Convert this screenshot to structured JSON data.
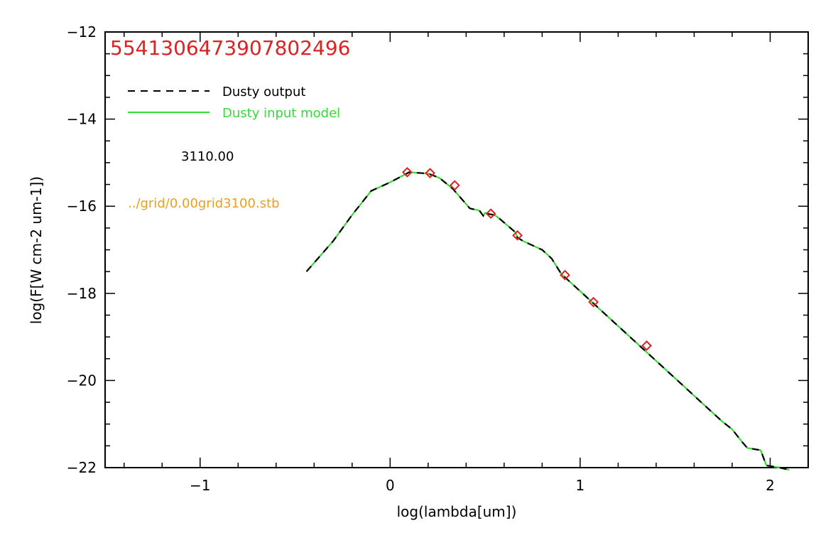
{
  "colors": {
    "frame": "#000000",
    "dusty_output": "#000000",
    "dusty_input": "#33dd33",
    "markers": "#dd2222",
    "identifier": "#dd2222",
    "file_label": "#e8a020",
    "temperature_label": "#000000"
  },
  "chart_data": {
    "type": "line",
    "title": "",
    "identifier": "5541306473907802496",
    "xlabel": "log(lambda[um])",
    "ylabel": "log(F[W cm-2 um-1])",
    "xlim": [
      -1.5,
      2.2
    ],
    "ylim": [
      -22,
      -12
    ],
    "x_ticks": [
      -1,
      0,
      1,
      2
    ],
    "x_tick_labels": [
      "−1",
      "0",
      "1",
      "2"
    ],
    "y_ticks": [
      -22,
      -20,
      -18,
      -16,
      -14,
      -12
    ],
    "y_tick_labels": [
      "−22",
      "−20",
      "−18",
      "−16",
      "−14",
      "−12"
    ],
    "annotations": {
      "temperature": "3110.00",
      "file": "../grid/0.00grid3100.stb"
    },
    "legend": {
      "placement": "top-left",
      "entries": [
        "Dusty output",
        "Dusty input model"
      ]
    },
    "series": [
      {
        "name": "Dusty output",
        "style": "dashed",
        "x": [
          -0.44,
          -0.3,
          -0.2,
          -0.1,
          0.0,
          0.1,
          0.2,
          0.26,
          0.33,
          0.42,
          0.47,
          0.49,
          0.5,
          0.52,
          0.55,
          0.58,
          0.62,
          0.66,
          0.67,
          0.7,
          0.75,
          0.8,
          0.85,
          0.9,
          0.95,
          1.0,
          1.1,
          1.2,
          1.3,
          1.4,
          1.5,
          1.6,
          1.7,
          1.75,
          1.8,
          1.85,
          1.88,
          1.95,
          1.98,
          2.05,
          2.1
        ],
        "y": [
          -17.5,
          -16.8,
          -16.2,
          -15.65,
          -15.45,
          -15.22,
          -15.25,
          -15.35,
          -15.6,
          -16.05,
          -16.1,
          -16.22,
          -16.15,
          -16.18,
          -16.2,
          -16.3,
          -16.45,
          -16.6,
          -16.72,
          -16.8,
          -16.9,
          -17.0,
          -17.2,
          -17.55,
          -17.75,
          -17.95,
          -18.35,
          -18.75,
          -19.15,
          -19.55,
          -19.95,
          -20.35,
          -20.75,
          -20.95,
          -21.12,
          -21.4,
          -21.55,
          -21.6,
          -21.95,
          -22.0,
          -22.05
        ]
      },
      {
        "name": "Dusty input model",
        "style": "solid",
        "x": [
          -0.44,
          -0.3,
          -0.2,
          -0.1,
          0.0,
          0.1,
          0.2,
          0.26,
          0.33,
          0.42,
          0.47,
          0.49,
          0.5,
          0.52,
          0.55,
          0.58,
          0.62,
          0.66,
          0.67,
          0.7,
          0.75,
          0.8,
          0.85,
          0.9,
          0.95,
          1.0,
          1.1,
          1.2,
          1.3,
          1.4,
          1.5,
          1.6,
          1.7,
          1.75,
          1.8,
          1.85,
          1.88,
          1.95,
          1.98,
          2.05,
          2.1
        ],
        "y": [
          -17.5,
          -16.8,
          -16.2,
          -15.65,
          -15.45,
          -15.22,
          -15.25,
          -15.35,
          -15.6,
          -16.05,
          -16.1,
          -16.22,
          -16.15,
          -16.18,
          -16.2,
          -16.3,
          -16.45,
          -16.6,
          -16.72,
          -16.8,
          -16.9,
          -17.0,
          -17.2,
          -17.55,
          -17.75,
          -17.95,
          -18.35,
          -18.75,
          -19.15,
          -19.55,
          -19.95,
          -20.35,
          -20.75,
          -20.95,
          -21.12,
          -21.4,
          -21.55,
          -21.6,
          -21.95,
          -22.0,
          -22.05
        ]
      }
    ],
    "markers": {
      "shape": "diamond",
      "x": [
        0.09,
        0.21,
        0.34,
        0.53,
        0.67,
        0.92,
        1.07,
        1.35
      ],
      "y": [
        -15.22,
        -15.24,
        -15.52,
        -16.17,
        -16.67,
        -17.58,
        -18.2,
        -19.2
      ]
    }
  }
}
